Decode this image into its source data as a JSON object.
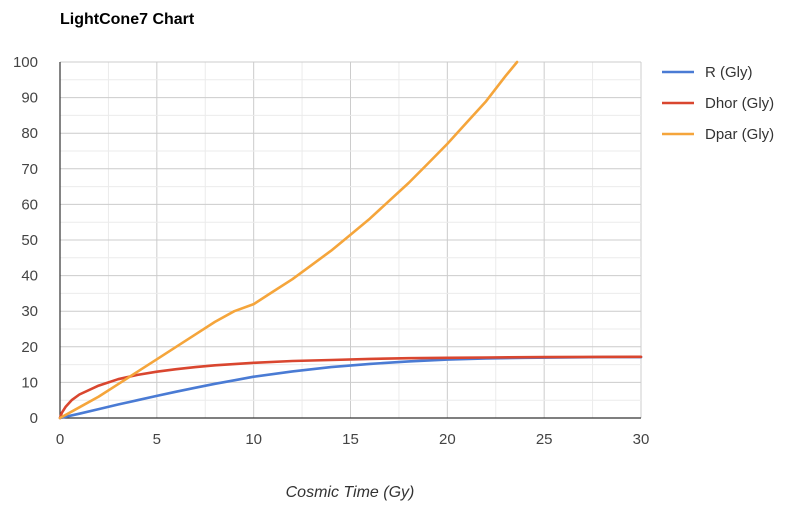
{
  "chart_data": {
    "type": "line",
    "title": "LightCone7 Chart",
    "xlabel": "Cosmic Time (Gy)",
    "ylabel": "",
    "xlim": [
      0,
      30
    ],
    "ylim": [
      0,
      100
    ],
    "x_ticks": [
      "0",
      "5",
      "10",
      "15",
      "20",
      "25",
      "30"
    ],
    "y_ticks": [
      "0",
      "10",
      "20",
      "30",
      "40",
      "50",
      "60",
      "70",
      "80",
      "90",
      "100"
    ],
    "grid": true,
    "legend_position": "right",
    "series": [
      {
        "name": "R (Gly)",
        "color": "#4a7bd4",
        "points": [
          [
            0,
            0
          ],
          [
            1,
            1.2
          ],
          [
            2,
            2.5
          ],
          [
            3,
            3.8
          ],
          [
            4,
            5.0
          ],
          [
            5,
            6.2
          ],
          [
            6,
            7.4
          ],
          [
            7,
            8.5
          ],
          [
            8,
            9.6
          ],
          [
            9,
            10.6
          ],
          [
            10,
            11.6
          ],
          [
            12,
            13.1
          ],
          [
            14,
            14.3
          ],
          [
            16,
            15.2
          ],
          [
            18,
            15.9
          ],
          [
            20,
            16.4
          ],
          [
            22,
            16.7
          ],
          [
            24,
            16.9
          ],
          [
            26,
            17.0
          ],
          [
            28,
            17.1
          ],
          [
            30,
            17.1
          ]
        ]
      },
      {
        "name": "Dhor (Gly)",
        "color": "#d9462f",
        "points": [
          [
            0,
            0
          ],
          [
            0.1,
            1.5
          ],
          [
            0.3,
            3.2
          ],
          [
            0.6,
            5.0
          ],
          [
            1,
            6.6
          ],
          [
            2,
            9.1
          ],
          [
            3,
            10.9
          ],
          [
            4,
            12.1
          ],
          [
            5,
            13.0
          ],
          [
            6,
            13.7
          ],
          [
            7,
            14.3
          ],
          [
            8,
            14.8
          ],
          [
            10,
            15.5
          ],
          [
            12,
            16.0
          ],
          [
            14,
            16.3
          ],
          [
            16,
            16.6
          ],
          [
            18,
            16.8
          ],
          [
            20,
            16.9
          ],
          [
            22,
            17.0
          ],
          [
            25,
            17.1
          ],
          [
            30,
            17.2
          ]
        ]
      },
      {
        "name": "Dpar (Gly)",
        "color": "#f5a53b",
        "points": [
          [
            0,
            0
          ],
          [
            1,
            3
          ],
          [
            2,
            6
          ],
          [
            3,
            9.5
          ],
          [
            4,
            13
          ],
          [
            5,
            16.5
          ],
          [
            6,
            20
          ],
          [
            7,
            23.5
          ],
          [
            8,
            27
          ],
          [
            9,
            30
          ],
          [
            10,
            32
          ],
          [
            11,
            35.5
          ],
          [
            12,
            39
          ],
          [
            13,
            43
          ],
          [
            14,
            47
          ],
          [
            15,
            51.5
          ],
          [
            16,
            56
          ],
          [
            17,
            61
          ],
          [
            18,
            66
          ],
          [
            19,
            71.5
          ],
          [
            20,
            77
          ],
          [
            21,
            83
          ],
          [
            22,
            89
          ],
          [
            23,
            96
          ],
          [
            23.6,
            100
          ]
        ]
      }
    ]
  }
}
